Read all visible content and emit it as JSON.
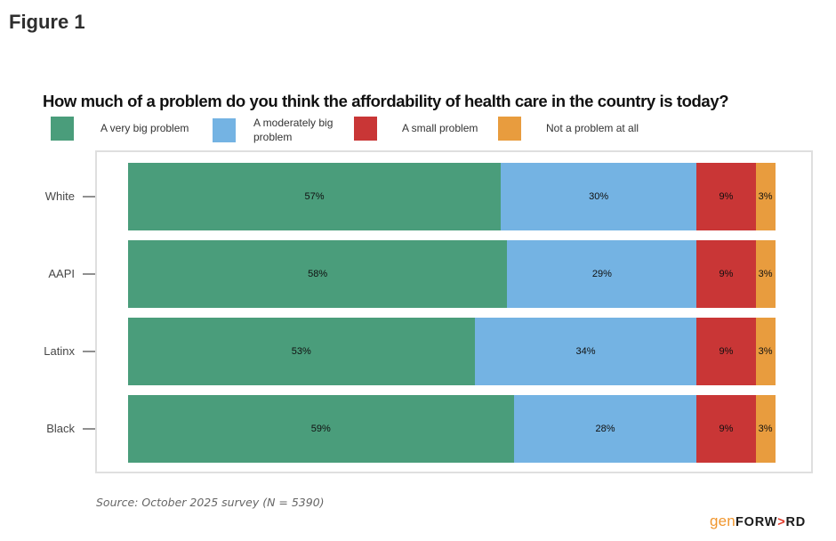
{
  "figure_label": "Figure 1",
  "title": "How much of a problem do you think the affordability of health care in the country is today?",
  "source_note": "Source: October 2025 survey (N = 5390)",
  "logo": {
    "prefix": "gen",
    "word_start": "FORW",
    "arrow": ">",
    "word_end": "RD"
  },
  "legend": [
    {
      "label": "A very big problem",
      "color": "#4a9d7b"
    },
    {
      "label": "A moderately big problem",
      "color": "#74b3e3"
    },
    {
      "label": "A small problem",
      "color": "#c93636"
    },
    {
      "label": "Not a problem at all",
      "color": "#e89c3e"
    }
  ],
  "chart_data": {
    "type": "bar",
    "orientation": "horizontal",
    "stacked": true,
    "title": "How much of a problem do you think the affordability of health care in the country is today?",
    "categories": [
      "White",
      "AAPI",
      "Latinx",
      "Black"
    ],
    "series": [
      {
        "name": "A very big problem",
        "color": "#4a9d7b",
        "values": [
          57,
          58,
          53,
          59
        ]
      },
      {
        "name": "A moderately big problem",
        "color": "#74b3e3",
        "values": [
          30,
          29,
          34,
          28
        ]
      },
      {
        "name": "A small problem",
        "color": "#c93636",
        "values": [
          9,
          9,
          9,
          9
        ]
      },
      {
        "name": "Not a problem at all",
        "color": "#e89c3e",
        "values": [
          3,
          3,
          3,
          3
        ]
      }
    ],
    "value_suffix": "%",
    "xlim": [
      0,
      100
    ],
    "grid": false,
    "legend_position": "top",
    "value_labels": "inside-center"
  }
}
